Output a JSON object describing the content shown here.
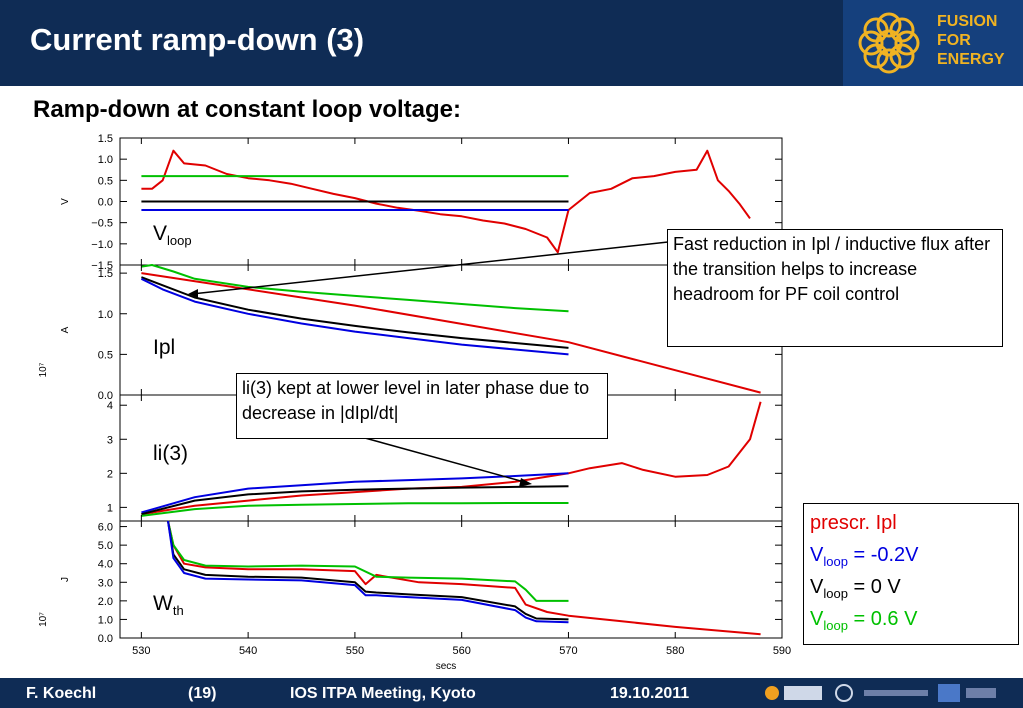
{
  "header": {
    "title": "Current ramp-down (3)"
  },
  "logo": {
    "line1": "FUSION",
    "line2": "FOR",
    "line3": "ENERGY"
  },
  "subtitle": "Ramp-down at constant loop voltage:",
  "annotations": {
    "callout1": "Fast reduction in Ipl / inductive flux after the transition helps to increase headroom for PF coil control",
    "callout2": "li(3) kept at lower level in later phase due to decrease in |dIpl/dt|"
  },
  "legend": [
    {
      "base": "prescr. Ipl",
      "sub": "",
      "rest": "",
      "color": "#e00000"
    },
    {
      "base": "V",
      "sub": "loop",
      "rest": " = -0.2V",
      "color": "#0000e0"
    },
    {
      "base": "V",
      "sub": "loop",
      "rest": " = 0 V",
      "color": "#000000"
    },
    {
      "base": "V",
      "sub": "loop",
      "rest": " = 0.6 V",
      "color": "#00c000"
    }
  ],
  "footer": {
    "author": "F. Koechl",
    "page": "(19)",
    "meeting": "IOS ITPA Meeting, Kyoto",
    "date": "19.10.2011"
  },
  "chart_data": {
    "type": "line",
    "xlabel": "secs",
    "xlim": [
      528,
      590
    ],
    "xticks": [
      530,
      540,
      550,
      560,
      570,
      580,
      590
    ],
    "colors": {
      "red": "#e00000",
      "blue": "#0000e0",
      "black": "#000000",
      "green": "#00c000"
    },
    "panels": [
      {
        "id": "vloop",
        "ylabel": "V",
        "exponent": "",
        "ylim": [
          -1.5,
          1.5
        ],
        "yticks": [
          "1.5",
          "1.0",
          "0.5",
          "0.0",
          "−0.5",
          "−1.0",
          "−1.5"
        ],
        "ytick_values": [
          1.5,
          1.0,
          0.5,
          0.0,
          -0.5,
          -1.0,
          -1.5
        ],
        "label": {
          "base": "V",
          "sub": "loop"
        },
        "series": [
          {
            "color": "red",
            "x": [
              530,
              531,
              532,
              533,
              534,
              536,
              538,
              540,
              542,
              544,
              546,
              548,
              550,
              552,
              554,
              556,
              558,
              560,
              562,
              564,
              566,
              568,
              569,
              570,
              572,
              574,
              576,
              578,
              580,
              582,
              583,
              584,
              585,
              586,
              587
            ],
            "y": [
              0.3,
              0.3,
              0.5,
              1.2,
              0.9,
              0.85,
              0.65,
              0.55,
              0.5,
              0.42,
              0.3,
              0.18,
              0.08,
              -0.05,
              -0.15,
              -0.22,
              -0.3,
              -0.35,
              -0.45,
              -0.52,
              -0.65,
              -0.85,
              -1.2,
              -0.2,
              0.2,
              0.3,
              0.55,
              0.6,
              0.7,
              0.75,
              1.2,
              0.5,
              0.25,
              -0.05,
              -0.4
            ]
          },
          {
            "color": "green",
            "x": [
              530,
              570
            ],
            "y": [
              0.6,
              0.6
            ]
          },
          {
            "color": "black",
            "x": [
              530,
              570
            ],
            "y": [
              0.0,
              0.0
            ]
          },
          {
            "color": "blue",
            "x": [
              530,
              570
            ],
            "y": [
              -0.2,
              -0.2
            ]
          }
        ]
      },
      {
        "id": "ipl",
        "ylabel": "A",
        "exponent": "10⁷",
        "ylim": [
          0,
          1.6
        ],
        "yticks": [
          "1.5",
          "1.0",
          "0.5",
          "0.0"
        ],
        "ytick_values": [
          1.5,
          1.0,
          0.5,
          0.0
        ],
        "label": {
          "base": "Ipl",
          "sub": ""
        },
        "series": [
          {
            "color": "red",
            "x": [
              530,
              550,
              570,
              588
            ],
            "y": [
              1.5,
              1.1,
              0.65,
              0.03
            ]
          },
          {
            "color": "green",
            "x": [
              530,
              531,
              533,
              535,
              540,
              545,
              550,
              555,
              560,
              565,
              570
            ],
            "y": [
              1.58,
              1.6,
              1.52,
              1.43,
              1.33,
              1.27,
              1.22,
              1.17,
              1.12,
              1.07,
              1.03
            ]
          },
          {
            "color": "black",
            "x": [
              530,
              532,
              535,
              540,
              545,
              550,
              555,
              560,
              565,
              570
            ],
            "y": [
              1.45,
              1.35,
              1.2,
              1.05,
              0.94,
              0.85,
              0.77,
              0.7,
              0.64,
              0.58
            ]
          },
          {
            "color": "blue",
            "x": [
              530,
              532,
              535,
              540,
              545,
              550,
              555,
              560,
              565,
              570
            ],
            "y": [
              1.43,
              1.3,
              1.15,
              1.0,
              0.88,
              0.78,
              0.7,
              0.62,
              0.56,
              0.5
            ]
          }
        ]
      },
      {
        "id": "li3",
        "ylabel": "",
        "exponent": "",
        "ylim": [
          0.6,
          4.3
        ],
        "yticks": [
          "4",
          "3",
          "2",
          "1"
        ],
        "ytick_values": [
          4,
          3,
          2,
          1
        ],
        "label": {
          "base": "li(3)",
          "sub": ""
        },
        "series": [
          {
            "color": "red",
            "x": [
              530,
              535,
              540,
              545,
              550,
              555,
              560,
              565,
              570,
              572,
              575,
              577,
              580,
              583,
              585,
              587,
              588
            ],
            "y": [
              0.8,
              1.05,
              1.2,
              1.35,
              1.45,
              1.55,
              1.6,
              1.75,
              2.0,
              2.15,
              2.3,
              2.1,
              1.9,
              1.95,
              2.2,
              3.0,
              4.1
            ]
          },
          {
            "color": "blue",
            "x": [
              530,
              535,
              540,
              545,
              550,
              555,
              560,
              565,
              570
            ],
            "y": [
              0.85,
              1.3,
              1.55,
              1.65,
              1.75,
              1.8,
              1.85,
              1.92,
              2.0
            ]
          },
          {
            "color": "black",
            "x": [
              530,
              535,
              540,
              545,
              550,
              555,
              560,
              565,
              570
            ],
            "y": [
              0.8,
              1.2,
              1.38,
              1.47,
              1.52,
              1.55,
              1.58,
              1.6,
              1.62
            ]
          },
          {
            "color": "green",
            "x": [
              530,
              535,
              540,
              545,
              550,
              555,
              560,
              565,
              570
            ],
            "y": [
              0.75,
              0.95,
              1.05,
              1.08,
              1.1,
              1.12,
              1.12,
              1.13,
              1.13
            ]
          }
        ]
      },
      {
        "id": "wth",
        "ylabel": "J",
        "exponent": "10⁷",
        "ylim": [
          0,
          6.3
        ],
        "yticks": [
          "6.0",
          "5.0",
          "4.0",
          "3.0",
          "2.0",
          "1.0",
          "0.0"
        ],
        "ytick_values": [
          6,
          5,
          4,
          3,
          2,
          1,
          0
        ],
        "label": {
          "base": "W",
          "sub": "th"
        },
        "series": [
          {
            "color": "red",
            "x": [
              532.5,
              533,
              534,
              536,
              540,
              545,
              550,
              551,
              552,
              556,
              560,
              565,
              566,
              568,
              570,
              575,
              580,
              585,
              588
            ],
            "y": [
              6.3,
              5.0,
              4.0,
              3.8,
              3.7,
              3.7,
              3.6,
              2.9,
              3.4,
              3.0,
              2.9,
              2.7,
              1.8,
              1.4,
              1.2,
              0.9,
              0.6,
              0.35,
              0.2
            ]
          },
          {
            "color": "green",
            "x": [
              532.5,
              533,
              534,
              536,
              540,
              545,
              550,
              552,
              555,
              560,
              565,
              566,
              567,
              570
            ],
            "y": [
              6.3,
              5.0,
              4.2,
              3.9,
              3.85,
              3.9,
              3.85,
              3.3,
              3.25,
              3.2,
              3.05,
              2.6,
              2.0,
              2.0
            ]
          },
          {
            "color": "black",
            "x": [
              532.5,
              533,
              534,
              536,
              540,
              545,
              550,
              551,
              552,
              555,
              560,
              565,
              566,
              567,
              570
            ],
            "y": [
              6.3,
              4.5,
              3.7,
              3.4,
              3.3,
              3.25,
              3.0,
              2.5,
              2.45,
              2.35,
              2.2,
              1.7,
              1.3,
              1.05,
              1.0
            ]
          },
          {
            "color": "blue",
            "x": [
              532.5,
              533,
              534,
              536,
              540,
              545,
              550,
              551,
              552,
              555,
              560,
              565,
              566,
              567,
              570
            ],
            "y": [
              6.3,
              4.3,
              3.5,
              3.2,
              3.15,
              3.1,
              2.85,
              2.3,
              2.3,
              2.2,
              2.05,
              1.5,
              1.1,
              0.9,
              0.85
            ]
          }
        ]
      }
    ]
  }
}
